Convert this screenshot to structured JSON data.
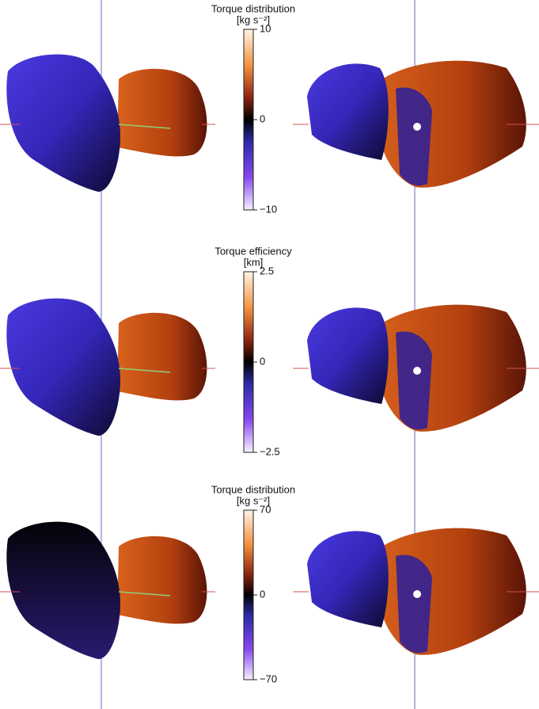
{
  "panels": [
    {
      "title": "Torque distribution",
      "unit": "[kg s⁻²]",
      "lim": [
        -10,
        10
      ],
      "ticks": [
        10,
        0,
        {
          "value": -10,
          "label": "−10"
        }
      ]
    },
    {
      "title": "Torque efficiency",
      "unit": "[km]",
      "lim": [
        -2.5,
        2.5
      ],
      "ticks": [
        2.5,
        0,
        {
          "value": -2.5,
          "label": "−2.5"
        }
      ]
    },
    {
      "title": "Torque distribution",
      "unit": "[kg s⁻²]",
      "lim": [
        -70,
        70
      ],
      "ticks": [
        70,
        0,
        {
          "value": -70,
          "label": "−70"
        }
      ]
    }
  ]
}
